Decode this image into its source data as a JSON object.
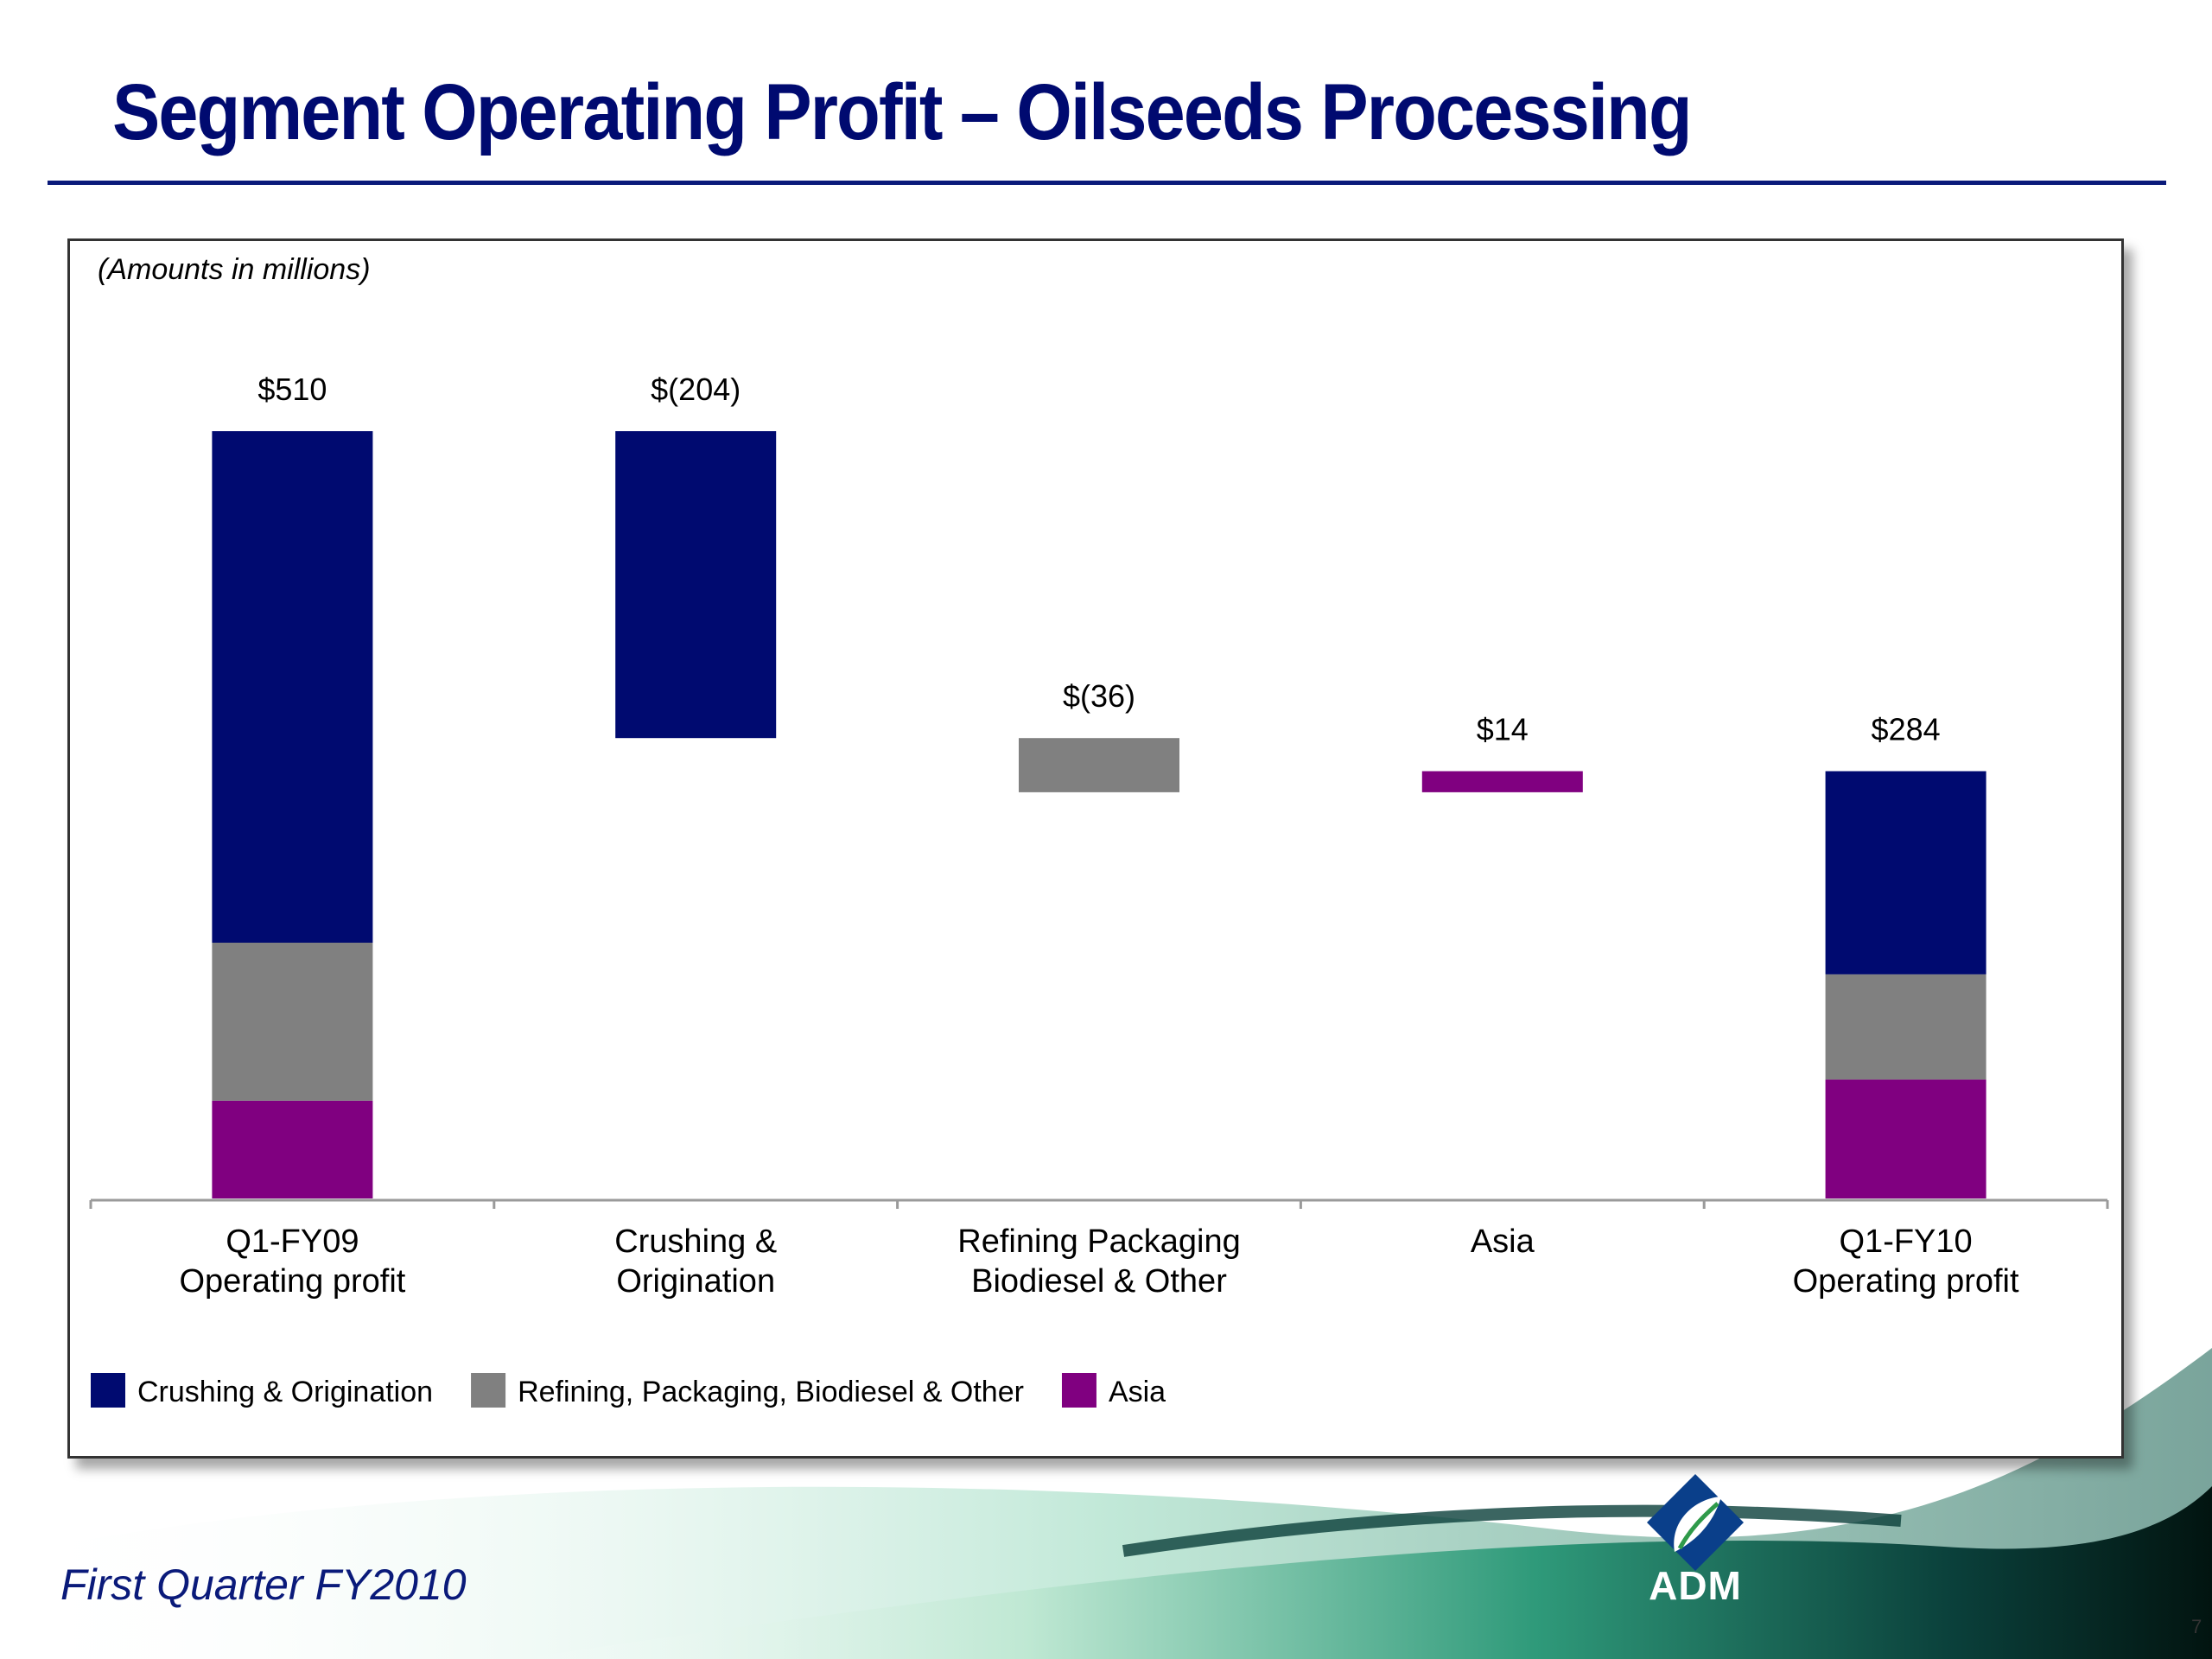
{
  "slide": {
    "title": "Segment Operating Profit – Oilseeds Processing",
    "footer": "First Quarter FY2010",
    "page_number": "7",
    "logo_text": "ADM",
    "note": "(Amounts in millions)"
  },
  "colors": {
    "title": "#000a70",
    "crushing": "#000a70",
    "refining": "#808080",
    "asia": "#800080"
  },
  "chart_data": {
    "type": "bar",
    "subtype": "waterfall-stacked",
    "title": "",
    "xlabel": "",
    "ylabel": "",
    "ylim": [
      0,
      510
    ],
    "grid": false,
    "legend_position": "bottom-left",
    "categories": [
      [
        "Q1-FY09",
        "Operating profit"
      ],
      [
        "Crushing  &",
        "Origination"
      ],
      [
        "Refining  Packaging",
        "Biodiesel & Other"
      ],
      [
        "Asia"
      ],
      [
        "Q1-FY10",
        "Operating profit"
      ]
    ],
    "data_labels": [
      "$510",
      "$(204)",
      "$(36)",
      "$14",
      "$284"
    ],
    "series": [
      {
        "name": "Crushing & Origination",
        "color": "#000a70"
      },
      {
        "name": "Refining, Packaging, Biodiesel & Other",
        "color": "#808080"
      },
      {
        "name": "Asia",
        "color": "#800080"
      }
    ],
    "bars": [
      {
        "category": 0,
        "segments": [
          {
            "series": 2,
            "from": 0,
            "to": 65
          },
          {
            "series": 1,
            "from": 65,
            "to": 170
          },
          {
            "series": 0,
            "from": 170,
            "to": 510
          }
        ]
      },
      {
        "category": 1,
        "segments": [
          {
            "series": 0,
            "from": 306,
            "to": 510
          }
        ]
      },
      {
        "category": 2,
        "segments": [
          {
            "series": 1,
            "from": 270,
            "to": 306
          }
        ]
      },
      {
        "category": 3,
        "segments": [
          {
            "series": 2,
            "from": 270,
            "to": 284
          }
        ]
      },
      {
        "category": 4,
        "segments": [
          {
            "series": 2,
            "from": 0,
            "to": 79
          },
          {
            "series": 1,
            "from": 79,
            "to": 149
          },
          {
            "series": 0,
            "from": 149,
            "to": 284
          }
        ]
      }
    ]
  }
}
